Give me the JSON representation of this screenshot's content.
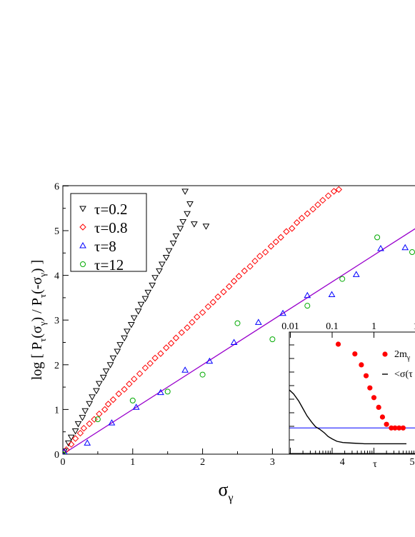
{
  "chart_data": {
    "type": "scatter",
    "xlabel": "σ_γ",
    "ylabel": "log [ P_τ(σ_γ) / P_τ(-σ_γ) ]",
    "xlim": [
      0,
      5.5
    ],
    "ylim": [
      0,
      6
    ],
    "x_ticks": [
      "0",
      "1",
      "2",
      "3",
      "4",
      "5"
    ],
    "y_ticks": [
      "0",
      "1",
      "2",
      "3",
      "4",
      "5",
      "6"
    ],
    "legend_position": "top-left",
    "series": [
      {
        "name": "τ=0.2",
        "marker": "triangle-down",
        "color": "#000000",
        "points": [
          [
            0.02,
            0.07
          ],
          [
            0.08,
            0.25
          ],
          [
            0.12,
            0.38
          ],
          [
            0.18,
            0.52
          ],
          [
            0.22,
            0.68
          ],
          [
            0.28,
            0.82
          ],
          [
            0.32,
            0.97
          ],
          [
            0.38,
            1.13
          ],
          [
            0.42,
            1.28
          ],
          [
            0.48,
            1.42
          ],
          [
            0.52,
            1.58
          ],
          [
            0.58,
            1.72
          ],
          [
            0.62,
            1.86
          ],
          [
            0.68,
            2.0
          ],
          [
            0.72,
            2.15
          ],
          [
            0.78,
            2.3
          ],
          [
            0.82,
            2.45
          ],
          [
            0.88,
            2.6
          ],
          [
            0.92,
            2.75
          ],
          [
            0.98,
            2.9
          ],
          [
            1.02,
            3.05
          ],
          [
            1.08,
            3.2
          ],
          [
            1.12,
            3.35
          ],
          [
            1.18,
            3.48
          ],
          [
            1.22,
            3.62
          ],
          [
            1.28,
            3.78
          ],
          [
            1.32,
            3.95
          ],
          [
            1.38,
            4.1
          ],
          [
            1.42,
            4.25
          ],
          [
            1.48,
            4.4
          ],
          [
            1.52,
            4.55
          ],
          [
            1.58,
            4.72
          ],
          [
            1.62,
            4.88
          ],
          [
            1.68,
            5.05
          ],
          [
            1.72,
            5.2
          ],
          [
            1.78,
            5.38
          ],
          [
            1.82,
            5.6
          ],
          [
            1.75,
            5.88
          ],
          [
            1.88,
            5.15
          ],
          [
            2.05,
            5.1
          ]
        ]
      },
      {
        "name": "τ=0.8",
        "marker": "diamond",
        "color": "#ff0000",
        "points": [
          [
            0.05,
            0.1
          ],
          [
            0.12,
            0.22
          ],
          [
            0.18,
            0.35
          ],
          [
            0.25,
            0.47
          ],
          [
            0.3,
            0.58
          ],
          [
            0.38,
            0.68
          ],
          [
            0.45,
            0.78
          ],
          [
            0.52,
            0.9
          ],
          [
            0.6,
            1.0
          ],
          [
            0.65,
            1.12
          ],
          [
            0.72,
            1.22
          ],
          [
            0.8,
            1.35
          ],
          [
            0.88,
            1.45
          ],
          [
            0.95,
            1.57
          ],
          [
            1.02,
            1.68
          ],
          [
            1.1,
            1.8
          ],
          [
            1.18,
            1.93
          ],
          [
            1.25,
            2.03
          ],
          [
            1.32,
            2.15
          ],
          [
            1.4,
            2.25
          ],
          [
            1.48,
            2.38
          ],
          [
            1.55,
            2.48
          ],
          [
            1.62,
            2.6
          ],
          [
            1.7,
            2.72
          ],
          [
            1.78,
            2.83
          ],
          [
            1.85,
            2.95
          ],
          [
            1.92,
            3.07
          ],
          [
            2.0,
            3.17
          ],
          [
            2.08,
            3.3
          ],
          [
            2.15,
            3.4
          ],
          [
            2.22,
            3.52
          ],
          [
            2.3,
            3.63
          ],
          [
            2.38,
            3.75
          ],
          [
            2.45,
            3.87
          ],
          [
            2.52,
            3.98
          ],
          [
            2.6,
            4.1
          ],
          [
            2.68,
            4.2
          ],
          [
            2.75,
            4.32
          ],
          [
            2.82,
            4.43
          ],
          [
            2.9,
            4.52
          ],
          [
            2.98,
            4.65
          ],
          [
            3.05,
            4.75
          ],
          [
            3.12,
            4.85
          ],
          [
            3.2,
            4.98
          ],
          [
            3.28,
            5.05
          ],
          [
            3.35,
            5.18
          ],
          [
            3.42,
            5.28
          ],
          [
            3.5,
            5.38
          ],
          [
            3.58,
            5.48
          ],
          [
            3.65,
            5.58
          ],
          [
            3.72,
            5.68
          ],
          [
            3.8,
            5.78
          ],
          [
            3.88,
            5.88
          ],
          [
            3.95,
            5.92
          ]
        ]
      },
      {
        "name": "τ=8",
        "marker": "triangle-up",
        "color": "#0000ff",
        "points": [
          [
            0.02,
            0.05
          ],
          [
            0.35,
            0.25
          ],
          [
            0.7,
            0.7
          ],
          [
            1.05,
            1.05
          ],
          [
            1.4,
            1.38
          ],
          [
            1.75,
            1.88
          ],
          [
            2.1,
            2.08
          ],
          [
            2.45,
            2.5
          ],
          [
            2.8,
            2.95
          ],
          [
            3.15,
            3.15
          ],
          [
            3.5,
            3.55
          ],
          [
            3.85,
            3.57
          ],
          [
            4.2,
            4.02
          ],
          [
            4.55,
            4.6
          ],
          [
            4.9,
            4.62
          ]
        ]
      },
      {
        "name": "τ=12",
        "marker": "circle",
        "color": "#00aa00",
        "points": [
          [
            0.0,
            0.0
          ],
          [
            0.5,
            0.78
          ],
          [
            1.0,
            1.2
          ],
          [
            1.5,
            1.4
          ],
          [
            2.0,
            1.78
          ],
          [
            2.5,
            2.93
          ],
          [
            3.0,
            2.57
          ],
          [
            3.5,
            3.32
          ],
          [
            4.0,
            3.92
          ],
          [
            4.5,
            4.85
          ],
          [
            5.0,
            4.52
          ]
        ]
      }
    ],
    "reference_line": {
      "color": "#9900cc",
      "slope": 1,
      "x_range": [
        0,
        5.5
      ]
    },
    "inset": {
      "xlabel": "τ",
      "x_ticks": [
        "0.01",
        "0.1",
        "1",
        "1"
      ],
      "x_scale": "log",
      "legend": [
        "2m_γ",
        "<σ(τ"
      ],
      "series": [
        {
          "name": "2m_γ",
          "color": "#ff0000",
          "marker": "circle",
          "points": [
            [
              0.14,
              0.9
            ],
            [
              0.35,
              0.82
            ],
            [
              0.5,
              0.73
            ],
            [
              0.65,
              0.64
            ],
            [
              0.8,
              0.54
            ],
            [
              1.0,
              0.46
            ],
            [
              1.3,
              0.38
            ],
            [
              1.6,
              0.3
            ],
            [
              2.0,
              0.24
            ],
            [
              2.6,
              0.21
            ],
            [
              3.2,
              0.21
            ],
            [
              4.0,
              0.21
            ],
            [
              5.0,
              0.21
            ]
          ]
        },
        {
          "name": "<σ(τ",
          "color": "#000000",
          "marker": "line",
          "points": [
            [
              0.0032,
              0.58
            ],
            [
              0.004,
              0.57
            ],
            [
              0.005,
              0.565
            ],
            [
              0.007,
              0.55
            ],
            [
              0.009,
              0.53
            ],
            [
              0.012,
              0.49
            ],
            [
              0.016,
              0.43
            ],
            [
              0.02,
              0.37
            ],
            [
              0.025,
              0.31
            ],
            [
              0.032,
              0.26
            ],
            [
              0.04,
              0.22
            ],
            [
              0.05,
              0.2
            ],
            [
              0.065,
              0.17
            ],
            [
              0.08,
              0.14
            ],
            [
              0.1,
              0.12
            ],
            [
              0.13,
              0.1
            ],
            [
              0.18,
              0.09
            ],
            [
              0.3,
              0.085
            ],
            [
              0.6,
              0.08
            ],
            [
              1.0,
              0.08
            ],
            [
              3.0,
              0.08
            ],
            [
              6.0,
              0.08
            ]
          ]
        }
      ],
      "reference_line": {
        "color": "#0000ff",
        "value": 0.21
      }
    }
  }
}
